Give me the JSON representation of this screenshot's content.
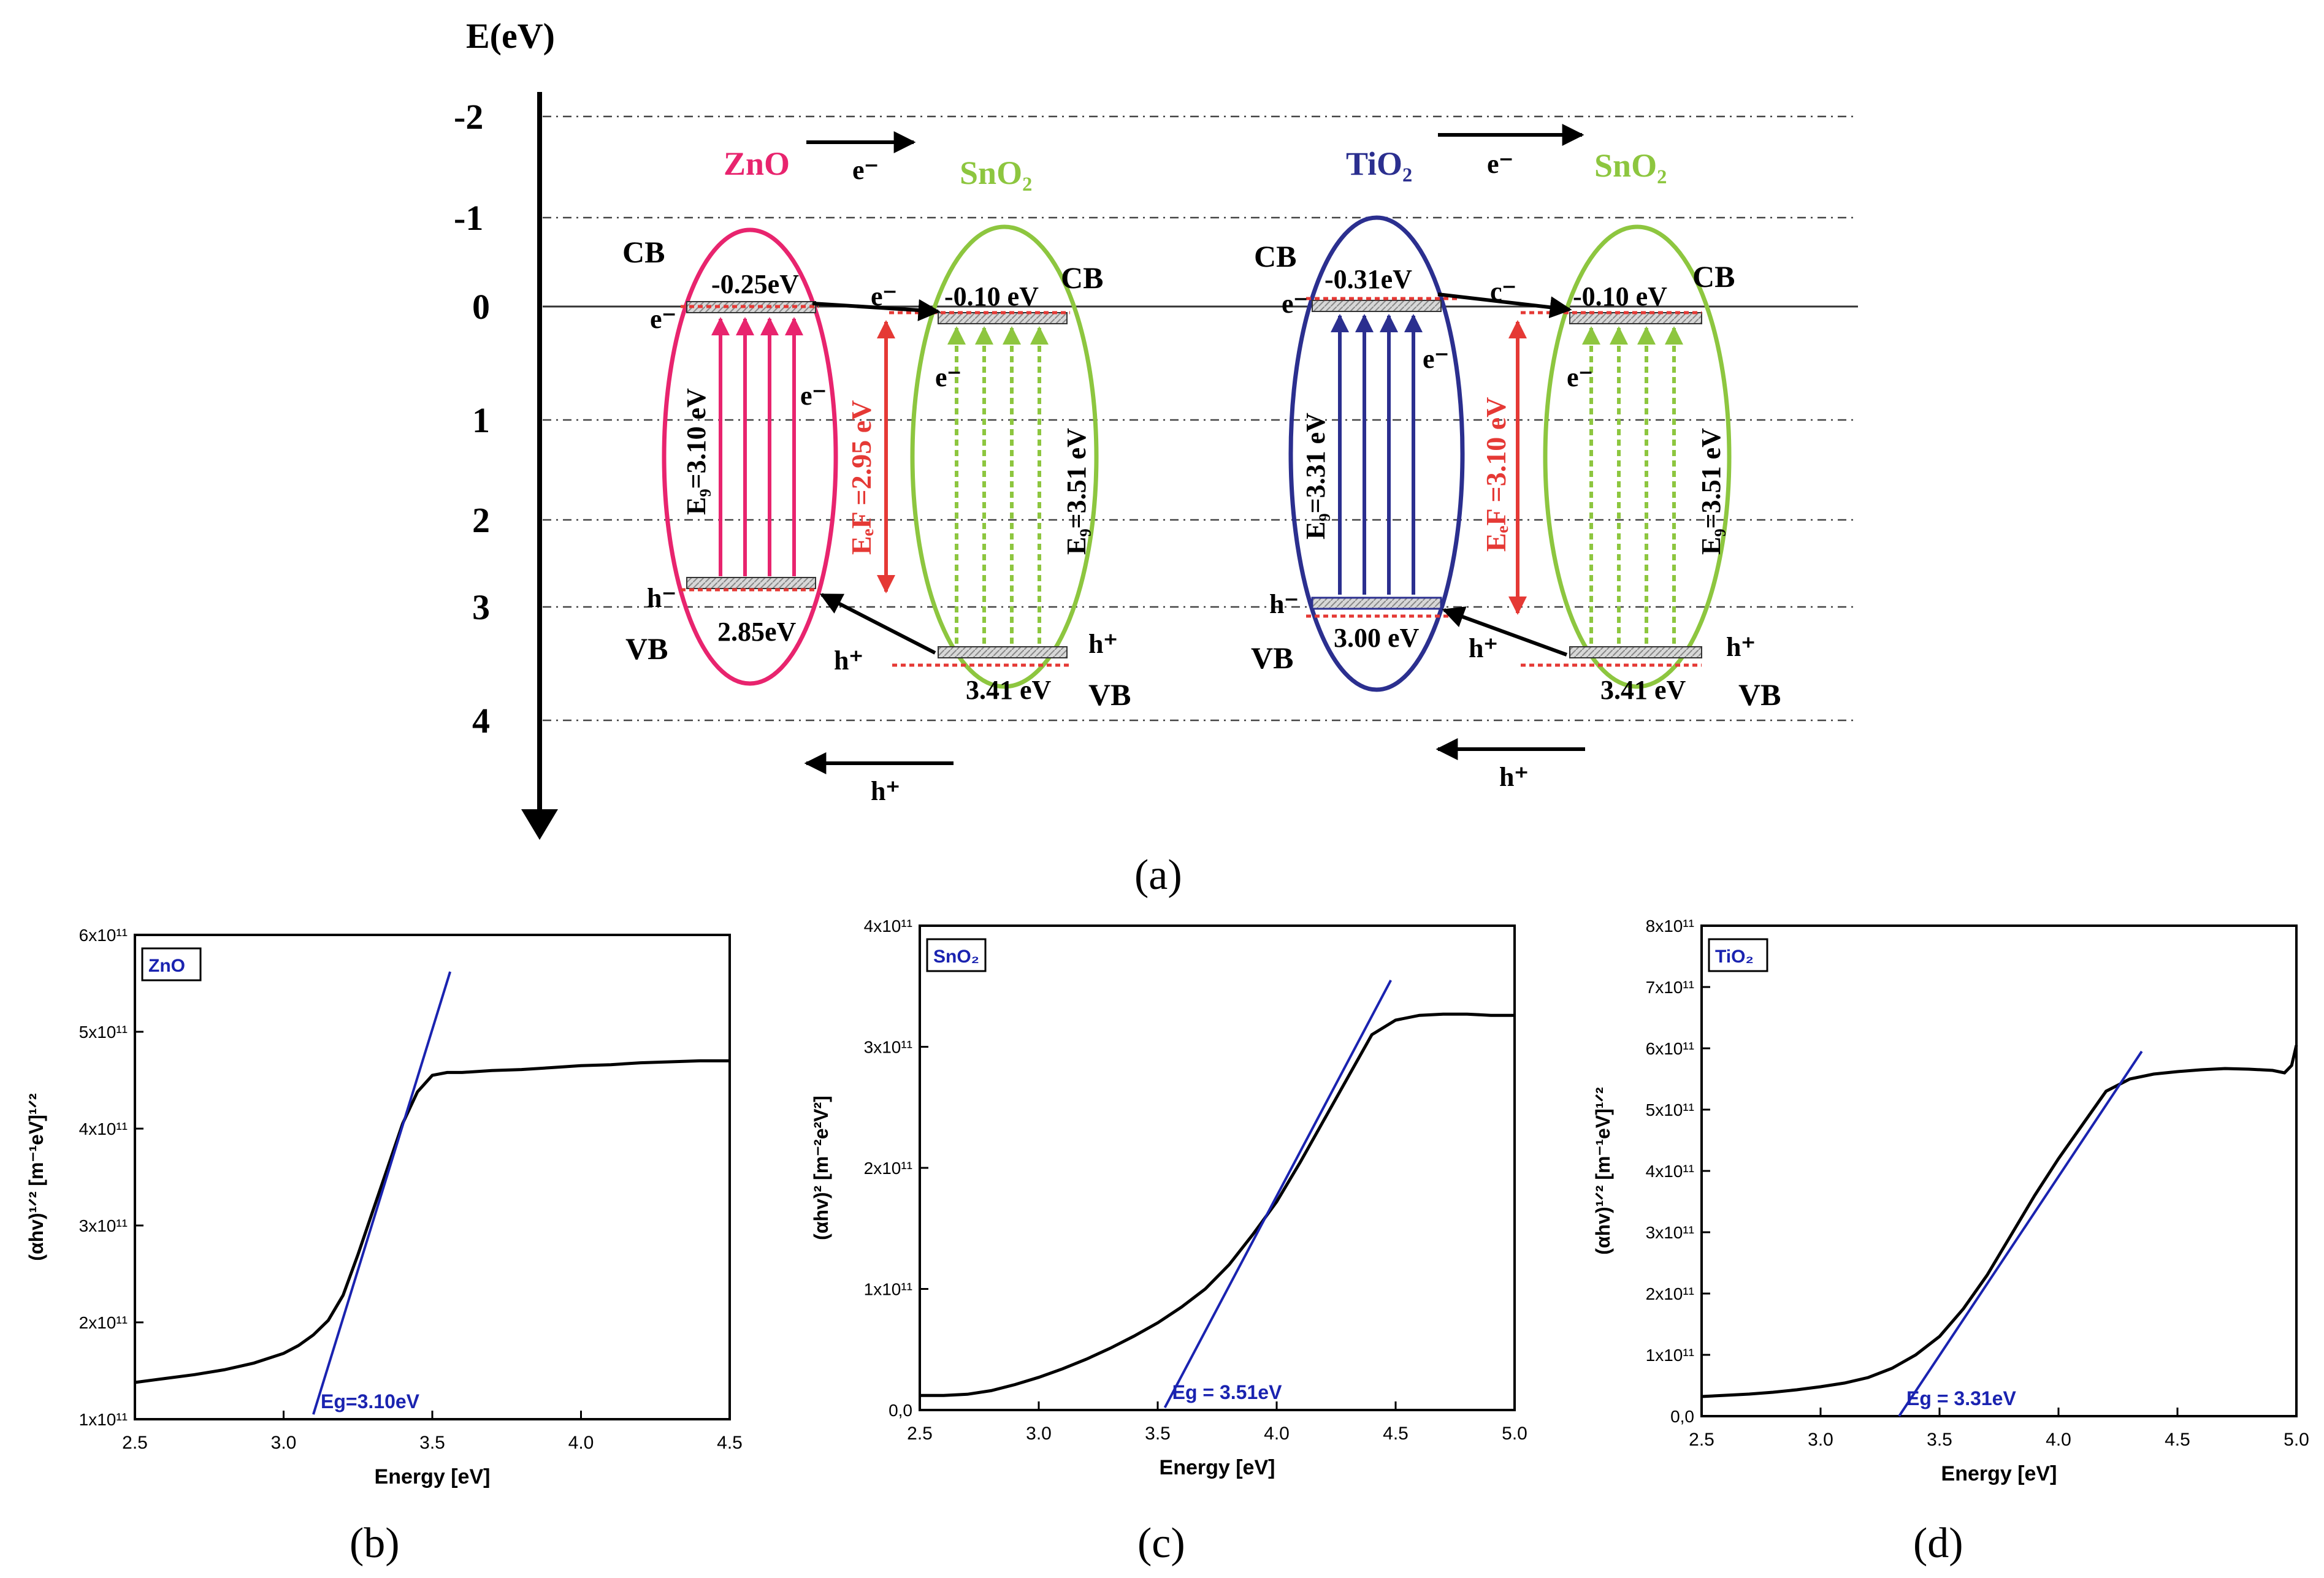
{
  "figure": {
    "panel_labels": {
      "a": "(a)",
      "b": "(b)",
      "c": "(c)",
      "d": "(d)"
    },
    "colors": {
      "zno": "#e8246e",
      "sno2": "#8dc63f",
      "tio2": "#2b2f8f",
      "red": "#e53935",
      "fit": "#1a23b0",
      "curve": "#000000"
    }
  },
  "diagram": {
    "axis_title": "E(eV)",
    "energy_ticks": [
      "-2",
      "-1",
      "0",
      "1",
      "2",
      "3",
      "4"
    ],
    "left": {
      "pair": {
        "from": "ZnO",
        "electron": "e⁻",
        "to": "SnO₂"
      },
      "zno": {
        "cb_label": "CB",
        "vb_label": "VB",
        "cb_value": "-0.25eV",
        "vb_value": "2.85eV",
        "eg_label": "E₉=3.10 eV",
        "cb_carrier": "e⁻",
        "vb_carrier": "h⁻",
        "side_carrier": "e⁻"
      },
      "sno2": {
        "cb_label": "CB",
        "vb_label": "VB",
        "cb_value": "-0.10 eV",
        "vb_value": "3.41 eV",
        "eg_label": "E₉=3.51 eV",
        "cb_carrier": "e⁻",
        "side_carrier": "e⁻",
        "vb_carrier": "h⁺"
      },
      "transfer_electron": "e⁻",
      "transfer_hole": "h⁺",
      "ref_label": "EₑF =2.95 eV",
      "hole_arrow_label": "h⁺"
    },
    "right": {
      "pair": {
        "from": "TiO₂",
        "electron": "e⁻",
        "to": "SnO₂"
      },
      "tio2": {
        "cb_label": "CB",
        "vb_label": "VB",
        "cb_value": "-0.31eV",
        "vb_value": "3.00 eV",
        "eg_label": "E₉=3.31 eV",
        "cb_carrier": "e⁻",
        "vb_carrier": "h⁻",
        "side_carrier": "e⁻"
      },
      "sno2": {
        "cb_label": "CB",
        "vb_label": "VB",
        "cb_value": "-0.10 eV",
        "vb_value": "3.41 eV",
        "eg_label": "E₉=3.51 eV",
        "cb_carrier": "e⁻",
        "side_carrier": "e⁻",
        "vb_carrier": "h⁺"
      },
      "transfer_electron": "c⁻",
      "transfer_hole": "h⁺",
      "ref_label": "EₑF =3.10 eV",
      "hole_arrow_label": "h⁺"
    }
  },
  "chart_data": [
    {
      "type": "line",
      "panel": "b",
      "title": "ZnO",
      "xlabel": "Energy [eV]",
      "ylabel": "(αhv)¹ᐟ² [m⁻¹eV]¹ᐟ²",
      "xlim": [
        2.5,
        4.5
      ],
      "ylim": [
        100000000000.0,
        600000000000.0
      ],
      "xticks": [
        "2.5",
        "3.0",
        "3.5",
        "4.0",
        "4.5"
      ],
      "yticks": [
        "1x10¹¹",
        "2x10¹¹",
        "3x10¹¹",
        "4x10¹¹",
        "5x10¹¹",
        "6x10¹¹"
      ],
      "ytick_values": [
        100000000000.0,
        200000000000.0,
        300000000000.0,
        400000000000.0,
        500000000000.0,
        600000000000.0
      ],
      "xtick_values": [
        2.5,
        3.0,
        3.5,
        4.0,
        4.5
      ],
      "series": [
        {
          "name": "absorption",
          "x": [
            2.5,
            2.6,
            2.7,
            2.8,
            2.9,
            3.0,
            3.05,
            3.1,
            3.15,
            3.2,
            3.25,
            3.3,
            3.35,
            3.4,
            3.45,
            3.5,
            3.55,
            3.6,
            3.7,
            3.8,
            3.9,
            4.0,
            4.1,
            4.2,
            4.3,
            4.4,
            4.5
          ],
          "y": [
            138000000000.0,
            142000000000.0,
            146000000000.0,
            151000000000.0,
            158000000000.0,
            168000000000.0,
            176000000000.0,
            187000000000.0,
            202000000000.0,
            228000000000.0,
            270000000000.0,
            315000000000.0,
            360000000000.0,
            405000000000.0,
            438000000000.0,
            455000000000.0,
            458000000000.0,
            458000000000.0,
            460000000000.0,
            461000000000.0,
            463000000000.0,
            465000000000.0,
            466000000000.0,
            468000000000.0,
            469000000000.0,
            470000000000.0,
            470000000000.0
          ]
        },
        {
          "name": "fit",
          "x": [
            3.1,
            3.56
          ],
          "y": [
            105000000000.0,
            562000000000.0
          ]
        }
      ],
      "annotation": "Eg=3.10eV"
    },
    {
      "type": "line",
      "panel": "c",
      "title": "SnO₂",
      "xlabel": "Energy [eV]",
      "ylabel": "(αhv)² [m⁻²e²V²]",
      "xlim": [
        2.5,
        5.0
      ],
      "ylim": [
        0,
        400000000000.0
      ],
      "xticks": [
        "2.5",
        "3.0",
        "3.5",
        "4.0",
        "4.5",
        "5.0"
      ],
      "xtick_values": [
        2.5,
        3.0,
        3.5,
        4.0,
        4.5,
        5.0
      ],
      "yticks": [
        "0,0",
        "1x10¹¹",
        "2x10¹¹",
        "3x10¹¹",
        "4x10¹¹"
      ],
      "ytick_values": [
        0,
        100000000000.0,
        200000000000.0,
        300000000000.0,
        400000000000.0
      ],
      "series": [
        {
          "name": "absorption",
          "x": [
            2.5,
            2.6,
            2.7,
            2.8,
            2.9,
            3.0,
            3.1,
            3.2,
            3.3,
            3.4,
            3.5,
            3.6,
            3.7,
            3.8,
            3.9,
            4.0,
            4.1,
            4.2,
            4.3,
            4.4,
            4.5,
            4.6,
            4.7,
            4.8,
            4.9,
            5.0
          ],
          "y": [
            12000000000.0,
            12000000000.0,
            13000000000.0,
            16000000000.0,
            21000000000.0,
            27000000000.0,
            34000000000.0,
            42000000000.0,
            51000000000.0,
            61000000000.0,
            72000000000.0,
            85000000000.0,
            100000000000.0,
            120000000000.0,
            145000000000.0,
            172000000000.0,
            205000000000.0,
            240000000000.0,
            275000000000.0,
            310000000000.0,
            322000000000.0,
            326000000000.0,
            327000000000.0,
            327000000000.0,
            326000000000.0,
            326000000000.0
          ]
        },
        {
          "name": "fit",
          "x": [
            3.53,
            4.48
          ],
          "y": [
            2000000000.0,
            355000000000.0
          ]
        }
      ],
      "annotation": "Eg = 3.51eV"
    },
    {
      "type": "line",
      "panel": "d",
      "title": "TiO₂",
      "xlabel": "Energy [eV]",
      "ylabel": "(αhv)¹ᐟ² [m⁻¹eV]¹ᐟ²",
      "xlim": [
        2.5,
        5.0
      ],
      "ylim": [
        0,
        800000000000.0
      ],
      "xticks": [
        "2.5",
        "3.0",
        "3.5",
        "4.0",
        "4.5",
        "5.0"
      ],
      "xtick_values": [
        2.5,
        3.0,
        3.5,
        4.0,
        4.5,
        5.0
      ],
      "yticks": [
        "0,0",
        "1x10¹¹",
        "2x10¹¹",
        "3x10¹¹",
        "4x10¹¹",
        "5x10¹¹",
        "6x10¹¹",
        "7x10¹¹",
        "8x10¹¹"
      ],
      "ytick_values": [
        0,
        100000000000.0,
        200000000000.0,
        300000000000.0,
        400000000000.0,
        500000000000.0,
        600000000000.0,
        700000000000.0,
        800000000000.0
      ],
      "series": [
        {
          "name": "absorption",
          "x": [
            2.5,
            2.6,
            2.7,
            2.8,
            2.9,
            3.0,
            3.1,
            3.2,
            3.3,
            3.4,
            3.5,
            3.6,
            3.7,
            3.8,
            3.9,
            4.0,
            4.1,
            4.2,
            4.3,
            4.4,
            4.5,
            4.6,
            4.7,
            4.8,
            4.9,
            4.95,
            4.98,
            5.0
          ],
          "y": [
            32000000000.0,
            34000000000.0,
            36000000000.0,
            39000000000.0,
            43000000000.0,
            48000000000.0,
            54000000000.0,
            63000000000.0,
            78000000000.0,
            100000000000.0,
            130000000000.0,
            175000000000.0,
            230000000000.0,
            295000000000.0,
            360000000000.0,
            420000000000.0,
            475000000000.0,
            530000000000.0,
            550000000000.0,
            558000000000.0,
            562000000000.0,
            565000000000.0,
            567000000000.0,
            566000000000.0,
            564000000000.0,
            560000000000.0,
            572000000000.0,
            605000000000.0
          ]
        },
        {
          "name": "fit",
          "x": [
            3.33,
            4.35
          ],
          "y": [
            0.0,
            595000000000.0
          ]
        }
      ],
      "annotation": "Eg = 3.31eV"
    }
  ]
}
